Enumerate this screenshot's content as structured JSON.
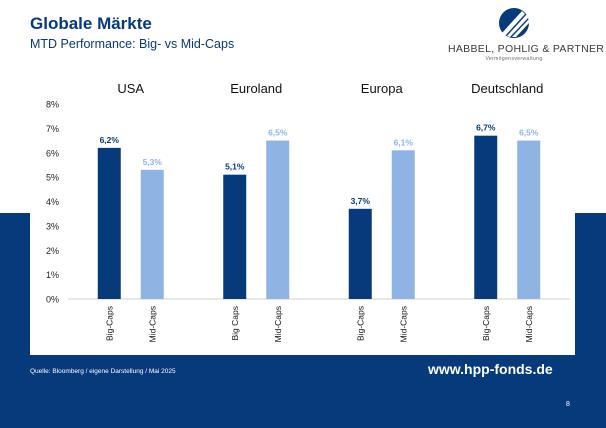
{
  "header": {
    "title": "Globale Märkte",
    "subtitle": "MTD Performance: Big- vs Mid-Caps"
  },
  "logo": {
    "name": "HABBEL, POHLIG & PARTNER",
    "tagline": "Vermögensverwaltung"
  },
  "footer": {
    "source": "Quelle: Bloomberg / eigene Darstellung / Mai 2025",
    "website": "www.hpp-fonds.de",
    "page": "8"
  },
  "colors": {
    "dark_blue": "#073a7a",
    "light_blue": "#8fb4e3",
    "band": "#073a7a"
  },
  "chart_data": {
    "type": "bar",
    "groups": [
      {
        "name": "USA",
        "bars": [
          {
            "label": "Big-Caps",
            "value": 6.2,
            "value_label": "6,2%",
            "color": "dark_blue"
          },
          {
            "label": "Mid-Caps",
            "value": 5.3,
            "value_label": "5,3%",
            "color": "light_blue"
          }
        ]
      },
      {
        "name": "Euroland",
        "bars": [
          {
            "label": "Big Caps",
            "value": 5.1,
            "value_label": "5,1%",
            "color": "dark_blue"
          },
          {
            "label": "Mid-Caps",
            "value": 6.5,
            "value_label": "6,5%",
            "color": "light_blue"
          }
        ]
      },
      {
        "name": "Europa",
        "bars": [
          {
            "label": "Big-Caps",
            "value": 3.7,
            "value_label": "3,7%",
            "color": "dark_blue"
          },
          {
            "label": "Mid-Caps",
            "value": 6.1,
            "value_label": "6,1%",
            "color": "light_blue"
          }
        ]
      },
      {
        "name": "Deutschland",
        "bars": [
          {
            "label": "Big-Caps",
            "value": 6.7,
            "value_label": "6,7%",
            "color": "dark_blue"
          },
          {
            "label": "Mid-Caps",
            "value": 6.5,
            "value_label": "6,5%",
            "color": "light_blue"
          }
        ]
      }
    ],
    "y_ticks": [
      "0%",
      "1%",
      "2%",
      "3%",
      "4%",
      "5%",
      "6%",
      "7%",
      "8%"
    ],
    "ylim": [
      0,
      8
    ],
    "grid": false,
    "legend": "none"
  }
}
